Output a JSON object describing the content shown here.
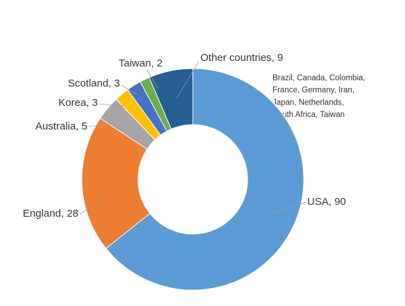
{
  "chart_data": {
    "type": "donut",
    "categories": [
      "USA",
      "England",
      "Australia",
      "Korea",
      "Scotland",
      "Taiwan",
      "Other countries"
    ],
    "values": [
      90,
      28,
      5,
      3,
      3,
      2,
      9
    ],
    "colors": [
      "#5b9bd5",
      "#ed7d31",
      "#a5a5a5",
      "#ffc000",
      "#4472c4",
      "#70ad47",
      "#255e91"
    ],
    "annotation": [
      "Brazil, Canada, Colombia,",
      "France, Germany, Iran,",
      "Japan, Netherlands,",
      "South Africa, Taiwan"
    ]
  }
}
